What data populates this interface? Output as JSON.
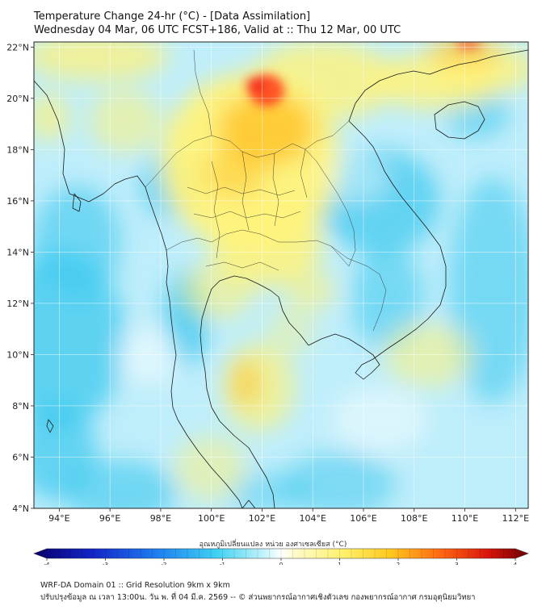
{
  "header": {
    "title_line1": "Temperature Change 24-hr (°C) - [Data Assimilation]",
    "title_line2": "Wednesday 04 Mar, 06 UTC FCST+186, Valid at :: Thu 12 Mar, 00 UTC"
  },
  "map": {
    "lon_range": [
      93,
      112.5
    ],
    "lat_range": [
      4,
      22.2
    ],
    "lon_ticks": [
      "94°E",
      "96°E",
      "98°E",
      "100°E",
      "102°E",
      "104°E",
      "106°E",
      "108°E",
      "110°E",
      "112°E"
    ],
    "lat_ticks": [
      "4°N",
      "6°N",
      "8°N",
      "10°N",
      "12°N",
      "14°N",
      "16°N",
      "18°N",
      "20°N",
      "22°N"
    ],
    "lon_values": [
      94,
      96,
      98,
      100,
      102,
      104,
      106,
      108,
      110,
      112
    ],
    "lat_values": [
      4,
      6,
      8,
      10,
      12,
      14,
      16,
      18,
      20,
      22
    ],
    "colors": {
      "sea_base": "#bfeefb",
      "cold": "#3cc8ee",
      "warm": "#fff27a",
      "hot": "#ffbf1f",
      "very_hot": "#ff3a1a"
    }
  },
  "colorbar": {
    "label": "อุณหภูมิเปลี่ยนแปลง หน่วย องศาเซลเซียส (°C)",
    "min": -4,
    "max": 4,
    "ticks": [
      "-4",
      "-3",
      "-2",
      "-1",
      "0",
      "1",
      "2",
      "3",
      "4"
    ],
    "tick_values": [
      -4,
      -3,
      -2,
      -1,
      0,
      1,
      2,
      3,
      4
    ]
  },
  "footer": {
    "line1": "WRF-DA Domain 01 :: Grid Resolution 9km x 9km",
    "line2": "ปรับปรุงข้อมูล ณ เวลา 13:00น. วัน พ. ที่ 04 มี.ค. 2569 -- © ส่วนพยากรณ์อากาศเชิงตัวเลข กองพยากรณ์อากาศ กรมอุตุนิยมวิทยา"
  }
}
